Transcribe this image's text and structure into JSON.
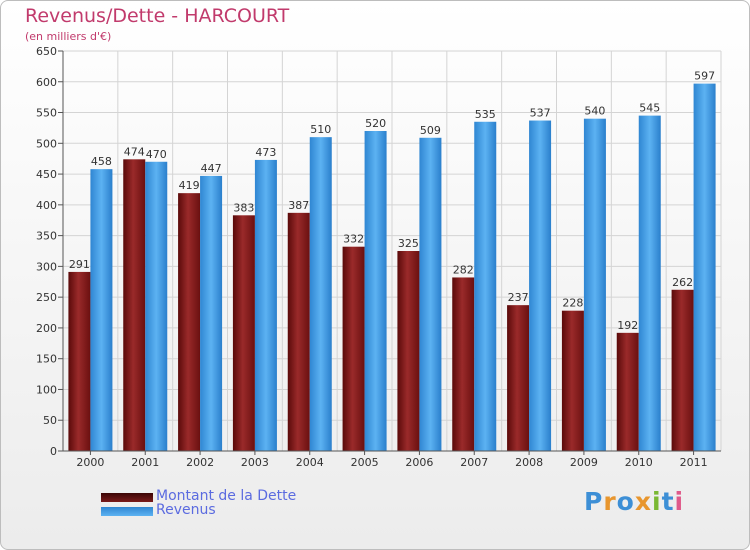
{
  "header": {
    "title": "Revenus/Dette - HARCOURT",
    "subtitle": "(en milliers d'€)"
  },
  "colors": {
    "title": "#c13a6c",
    "dette": "#7a1a1a",
    "revenus": "#3f9ee8",
    "legend_text": "#5b6be0"
  },
  "chart_data": {
    "type": "bar",
    "title": "Revenus/Dette - HARCOURT",
    "ylabel": "(en milliers d'€)",
    "xlabel": "",
    "ylim": [
      0,
      650
    ],
    "ytick_step": 50,
    "grid": true,
    "legend_position": "bottom-left",
    "categories": [
      "2000",
      "2001",
      "2002",
      "2003",
      "2004",
      "2005",
      "2006",
      "2007",
      "2008",
      "2009",
      "2010",
      "2011"
    ],
    "series": [
      {
        "name": "Montant de la Dette",
        "values": [
          291,
          474,
          419,
          383,
          387,
          332,
          325,
          282,
          237,
          228,
          192,
          262
        ]
      },
      {
        "name": "Revenus",
        "values": [
          458,
          470,
          447,
          473,
          510,
          520,
          509,
          535,
          537,
          540,
          545,
          597
        ]
      }
    ]
  },
  "legend": {
    "dette_label": "Montant de la Dette",
    "revenus_label": "Revenus"
  },
  "logo": {
    "text": "Proxiti",
    "letter_colors": [
      "#3d8fd6",
      "#e8962e",
      "#3d8fd6",
      "#e8962e",
      "#7ab833",
      "#3d8fd6",
      "#e05a8a"
    ]
  }
}
